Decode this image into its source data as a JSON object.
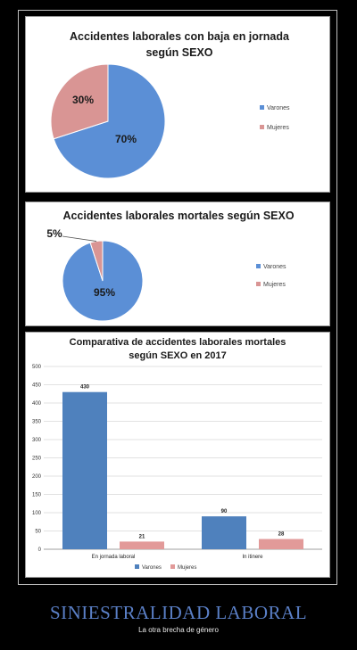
{
  "colors": {
    "varones": "#5b8fd6",
    "mujeres": "#d99594",
    "bar_varones": "#4f81bd",
    "bar_mujeres": "#e29a99",
    "headline": "#5a7fc6"
  },
  "chart_data": [
    {
      "type": "pie",
      "title_line1": "Accidentes laborales con baja en jornada",
      "title_line2": "según SEXO",
      "slices": [
        {
          "label": "Varones",
          "value": 70,
          "display": "70%"
        },
        {
          "label": "Mujeres",
          "value": 30,
          "display": "30%"
        }
      ],
      "legend": [
        "Varones",
        "Mujeres"
      ],
      "legend_position": "right"
    },
    {
      "type": "pie",
      "title_line1": "Accidentes laborales mortales según SEXO",
      "slices": [
        {
          "label": "Varones",
          "value": 95,
          "display": "95%"
        },
        {
          "label": "Mujeres",
          "value": 5,
          "display": "5%"
        }
      ],
      "legend": [
        "Varones",
        "Mujeres"
      ],
      "legend_position": "right"
    },
    {
      "type": "bar",
      "title_line1": "Comparativa de accidentes laborales mortales",
      "title_line2": "según SEXO en 2017",
      "categories": [
        "En jornada laboral",
        "In itinere"
      ],
      "series": [
        {
          "name": "Varones",
          "values": [
            430,
            90
          ]
        },
        {
          "name": "Mujeres",
          "values": [
            21,
            28
          ]
        }
      ],
      "ylim": [
        0,
        500
      ],
      "yticks": [
        0,
        50,
        100,
        150,
        200,
        250,
        300,
        350,
        400,
        450,
        500
      ],
      "grid": true,
      "legend_position": "bottom"
    }
  ],
  "footer": {
    "headline": "SINIESTRALIDAD LABORAL",
    "subtitle": "La otra brecha de género"
  }
}
